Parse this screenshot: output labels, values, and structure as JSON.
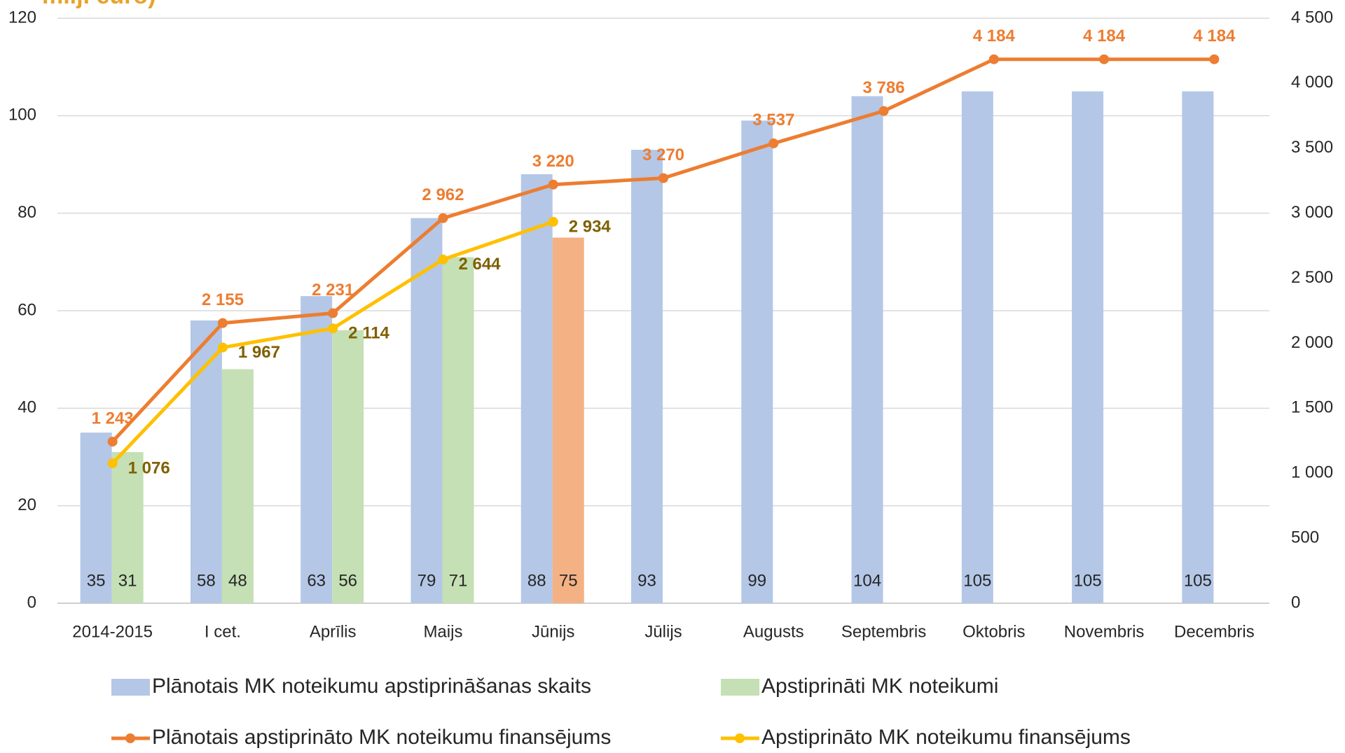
{
  "chart_data": {
    "type": "bar_line",
    "title": "milj. euro)",
    "categories": [
      "2014-2015",
      "I cet.",
      "Aprīlis",
      "Maijs",
      "Jūnijs",
      "Jūlijs",
      "Augusts",
      "Septembris",
      "Oktobris",
      "Novembris",
      "Decembris"
    ],
    "series": [
      {
        "name": "Plānotais MK noteikumu apstiprināšanas skaits",
        "type": "bar",
        "color": "#b4c7e7",
        "values": [
          35,
          58,
          63,
          79,
          88,
          93,
          99,
          104,
          105,
          105,
          105
        ]
      },
      {
        "name": "Apstiprināti MK noteikumi",
        "type": "bar",
        "color": "#c5e0b4",
        "point_colors": [
          "#c5e0b4",
          "#c5e0b4",
          "#c5e0b4",
          "#c5e0b4",
          "#f4b183",
          null,
          null,
          null,
          null,
          null,
          null
        ],
        "values": [
          31,
          48,
          56,
          71,
          75,
          null,
          null,
          null,
          null,
          null,
          null
        ]
      },
      {
        "name": "Plānotais apstiprināto MK noteikumu finansējums",
        "type": "line",
        "axis": "y2",
        "color": "#ed7d31",
        "values": [
          1243,
          2155,
          2231,
          2962,
          3220,
          3270,
          3537,
          3786,
          4184,
          4184,
          4184
        ],
        "value_labels": [
          "1 243",
          "2 155",
          "2 231",
          "2 962",
          "3 220",
          "3 270",
          "3 537",
          "3 786",
          "4 184",
          "4 184",
          "4 184"
        ]
      },
      {
        "name": "Apstiprināto MK noteikumu finansējums",
        "type": "line",
        "axis": "y2",
        "color": "#ffc000",
        "label_color": "#7f6000",
        "values": [
          1076,
          1967,
          2114,
          2644,
          2934,
          null,
          null,
          null,
          null,
          null,
          null
        ],
        "value_labels": [
          "1 076",
          "1 967",
          "2 114",
          "2 644",
          "2 934",
          null,
          null,
          null,
          null,
          null,
          null
        ]
      }
    ],
    "ylim": [
      0,
      120
    ],
    "yticks": [
      0,
      20,
      40,
      60,
      80,
      100,
      120
    ],
    "y2lim": [
      0,
      4500
    ],
    "y2ticks": [
      0,
      500,
      {
        "value": 1000,
        "label": "1 000"
      },
      {
        "value": 1500,
        "label": "1 500"
      },
      {
        "value": 2000,
        "label": "2 000"
      },
      {
        "value": 2500,
        "label": "2 500"
      },
      {
        "value": 3000,
        "label": "3 000"
      },
      {
        "value": 3500,
        "label": "3 500"
      },
      {
        "value": 4000,
        "label": "4 000"
      },
      {
        "value": 4500,
        "label": "4 500"
      }
    ],
    "grid": true,
    "legend": "bottom"
  }
}
